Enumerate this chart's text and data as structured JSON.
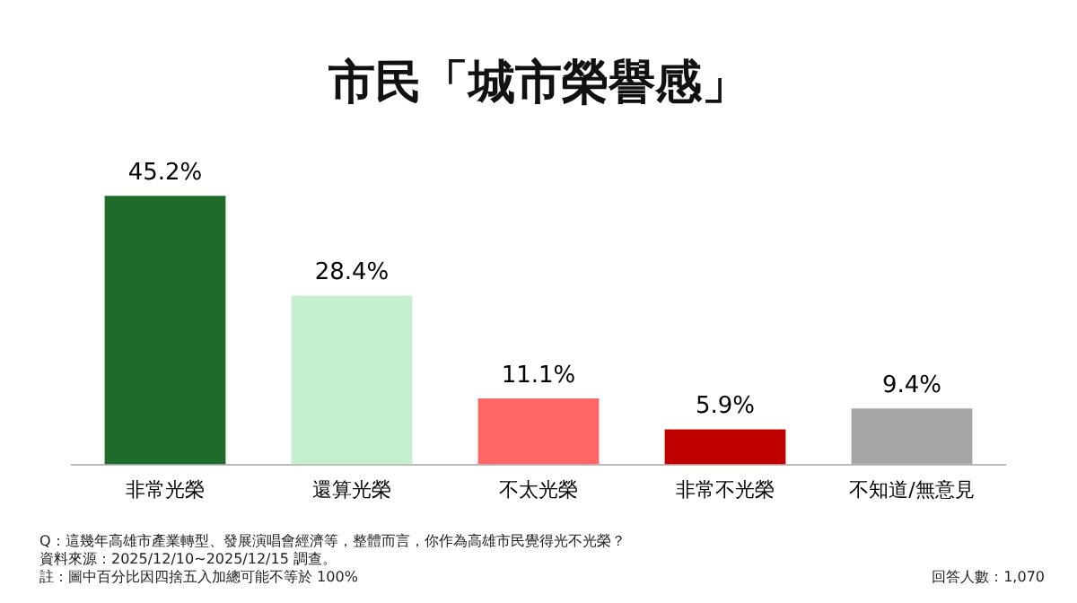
{
  "chart_data": {
    "type": "bar",
    "title": "市民「城市榮譽感」",
    "categories": [
      "非常光榮",
      "還算光榮",
      "不太光榮",
      "非常不光榮",
      "不知道/無意見"
    ],
    "values": [
      45.2,
      28.4,
      11.1,
      5.9,
      9.4
    ],
    "colors": [
      "#1e6b2a",
      "#c6efce",
      "#ff6666",
      "#c00000",
      "#a6a6a6"
    ],
    "value_labels": [
      "45.2%",
      "28.4%",
      "11.1%",
      "5.9%",
      "9.4%"
    ],
    "tick_labels": "x",
    "grid": false,
    "legend": false,
    "annotations": [
      "Q：這幾年高雄市產業轉型、發展演唱會經濟等，整體而言，你作為高雄市民覺得光不光榮？",
      "資料來源：2025/12/10~2025/12/15 調查。",
      "註：圖中百分比因四捨五入加總可能不等於 100%",
      "回答人數：1,070"
    ]
  }
}
